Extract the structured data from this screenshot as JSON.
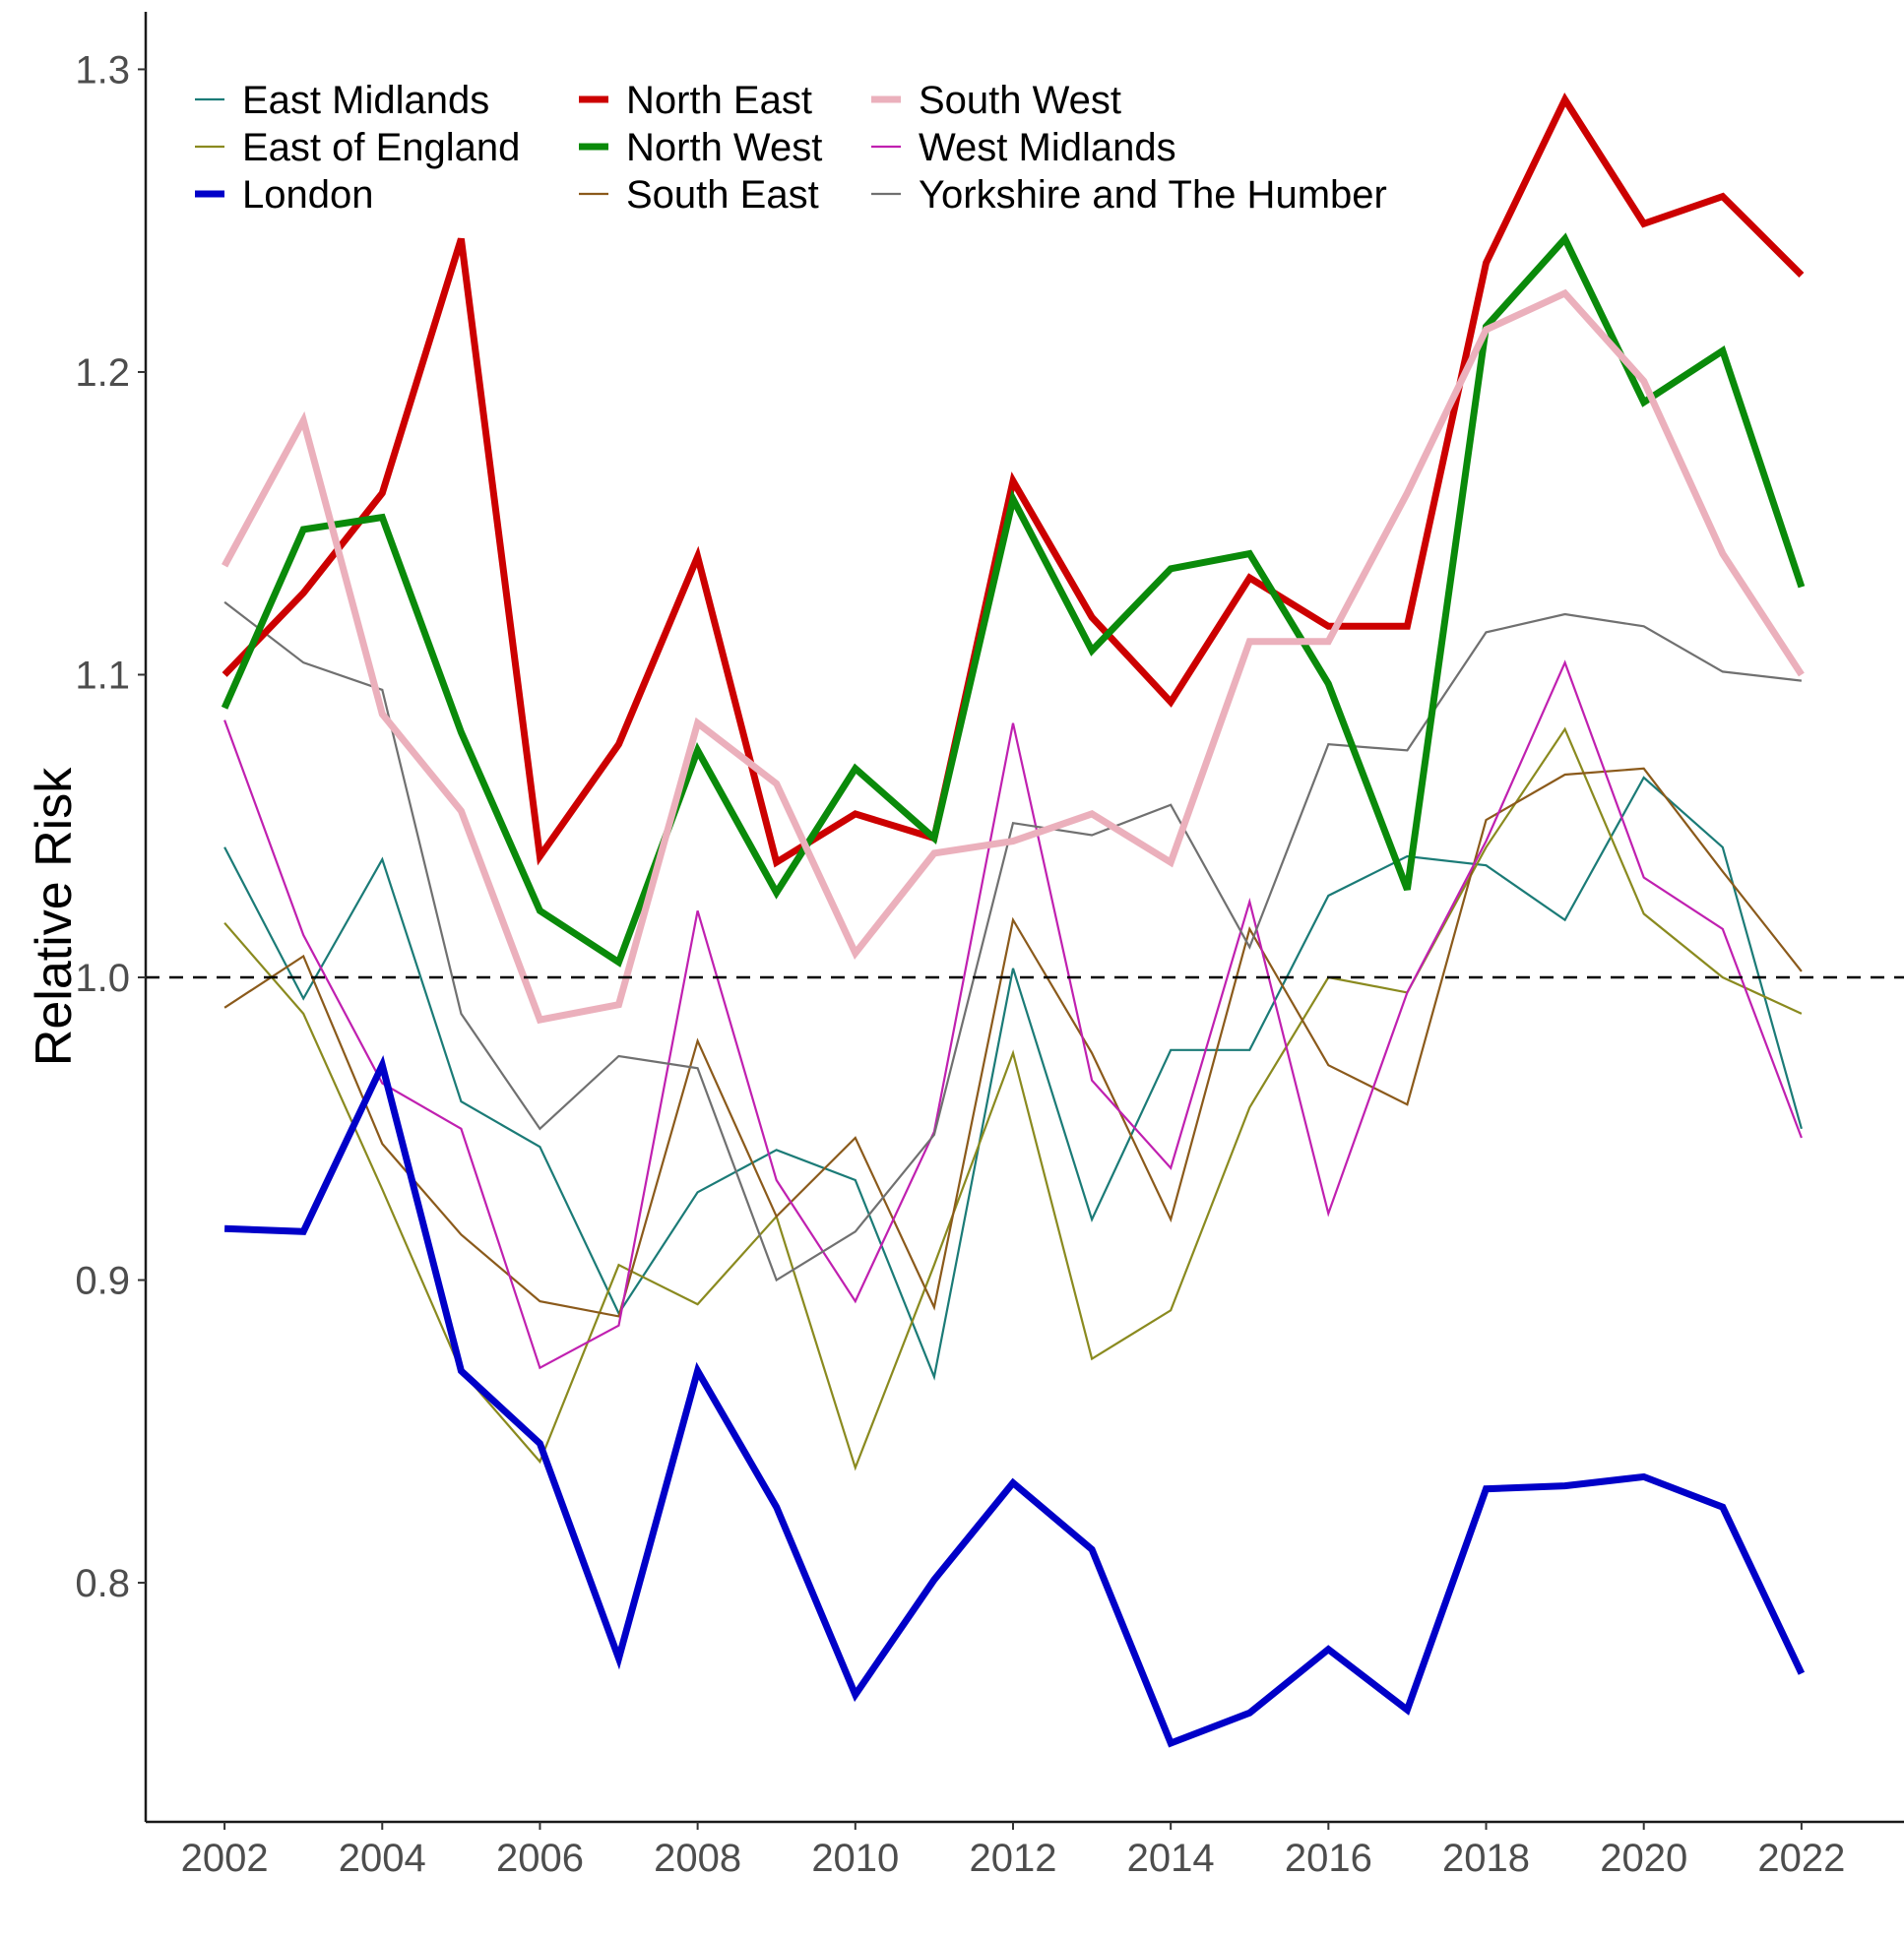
{
  "chart_data": {
    "type": "line",
    "title": "",
    "xlabel": "",
    "ylabel": "Relative Risk",
    "x": [
      2002,
      2003,
      2004,
      2005,
      2006,
      2007,
      2008,
      2009,
      2010,
      2011,
      2012,
      2013,
      2014,
      2015,
      2016,
      2017,
      2018,
      2019,
      2020,
      2021,
      2022
    ],
    "xticks": [
      "2002",
      "2004",
      "2006",
      "2008",
      "2010",
      "2012",
      "2014",
      "2016",
      "2018",
      "2020",
      "2022"
    ],
    "xlim": [
      2001,
      2023.3
    ],
    "yticks": [
      "0.8",
      "0.9",
      "1.0",
      "1.1",
      "1.2",
      "1.3"
    ],
    "ylim": [
      0.721,
      1.319
    ],
    "reference_line": {
      "y": 1.0,
      "style": "dashed",
      "color": "#000000"
    },
    "grid": false,
    "legend_position": "top-left",
    "series": [
      {
        "name": "East Midlands",
        "color": "#1b7b77",
        "weight": "thin",
        "values": [
          1.043,
          0.993,
          1.039,
          0.959,
          0.944,
          0.889,
          0.929,
          0.943,
          0.933,
          0.868,
          1.003,
          0.92,
          0.976,
          0.976,
          1.027,
          1.04,
          1.037,
          1.019,
          1.066,
          1.043,
          0.95
        ]
      },
      {
        "name": "East of England",
        "color": "#8a8a1f",
        "weight": "thin",
        "values": [
          1.018,
          0.988,
          0.93,
          0.87,
          0.84,
          0.905,
          0.892,
          0.921,
          0.838,
          0.905,
          0.975,
          0.874,
          0.89,
          0.957,
          1.0,
          0.995,
          1.043,
          1.082,
          1.021,
          1.0,
          0.988
        ]
      },
      {
        "name": "London",
        "color": "#0000c8",
        "weight": "thick",
        "values": [
          0.917,
          0.916,
          0.971,
          0.87,
          0.846,
          0.775,
          0.87,
          0.825,
          0.763,
          0.801,
          0.833,
          0.811,
          0.747,
          0.757,
          0.778,
          0.758,
          0.831,
          0.832,
          0.835,
          0.825,
          0.77
        ]
      },
      {
        "name": "North East",
        "color": "#cc0000",
        "weight": "thick",
        "values": [
          1.1,
          1.127,
          1.16,
          1.244,
          1.04,
          1.077,
          1.139,
          1.038,
          1.054,
          1.046,
          1.164,
          1.119,
          1.091,
          1.132,
          1.116,
          1.116,
          1.236,
          1.29,
          1.249,
          1.258,
          1.232
        ]
      },
      {
        "name": "North West",
        "color": "#0a8a0a",
        "weight": "thick",
        "values": [
          1.089,
          1.148,
          1.152,
          1.081,
          1.022,
          1.005,
          1.075,
          1.028,
          1.069,
          1.046,
          1.158,
          1.108,
          1.135,
          1.14,
          1.097,
          1.029,
          1.215,
          1.244,
          1.19,
          1.207,
          1.129
        ]
      },
      {
        "name": "South East",
        "color": "#8b5a1b",
        "weight": "thin",
        "values": [
          0.99,
          1.007,
          0.945,
          0.915,
          0.893,
          0.888,
          0.979,
          0.921,
          0.947,
          0.891,
          1.019,
          0.975,
          0.92,
          1.016,
          0.971,
          0.958,
          1.052,
          1.067,
          1.069,
          1.035,
          1.002
        ]
      },
      {
        "name": "South West",
        "color": "#ebb0bc",
        "weight": "thick",
        "values": [
          1.136,
          1.184,
          1.087,
          1.055,
          0.986,
          0.991,
          1.084,
          1.064,
          1.008,
          1.041,
          1.045,
          1.054,
          1.038,
          1.111,
          1.111,
          1.16,
          1.214,
          1.226,
          1.197,
          1.14,
          1.1
        ]
      },
      {
        "name": "West Midlands",
        "color": "#c020b0",
        "weight": "thin",
        "values": [
          1.085,
          1.014,
          0.965,
          0.95,
          0.871,
          0.885,
          1.022,
          0.933,
          0.893,
          0.949,
          1.084,
          0.966,
          0.937,
          1.025,
          0.922,
          0.995,
          1.045,
          1.104,
          1.033,
          1.016,
          0.947
        ]
      },
      {
        "name": "Yorkshire and The Humber",
        "color": "#707070",
        "weight": "thin",
        "values": [
          1.124,
          1.104,
          1.095,
          0.988,
          0.95,
          0.974,
          0.97,
          0.9,
          0.916,
          0.948,
          1.051,
          1.047,
          1.057,
          1.01,
          1.077,
          1.075,
          1.114,
          1.12,
          1.116,
          1.101,
          1.098
        ]
      }
    ]
  }
}
